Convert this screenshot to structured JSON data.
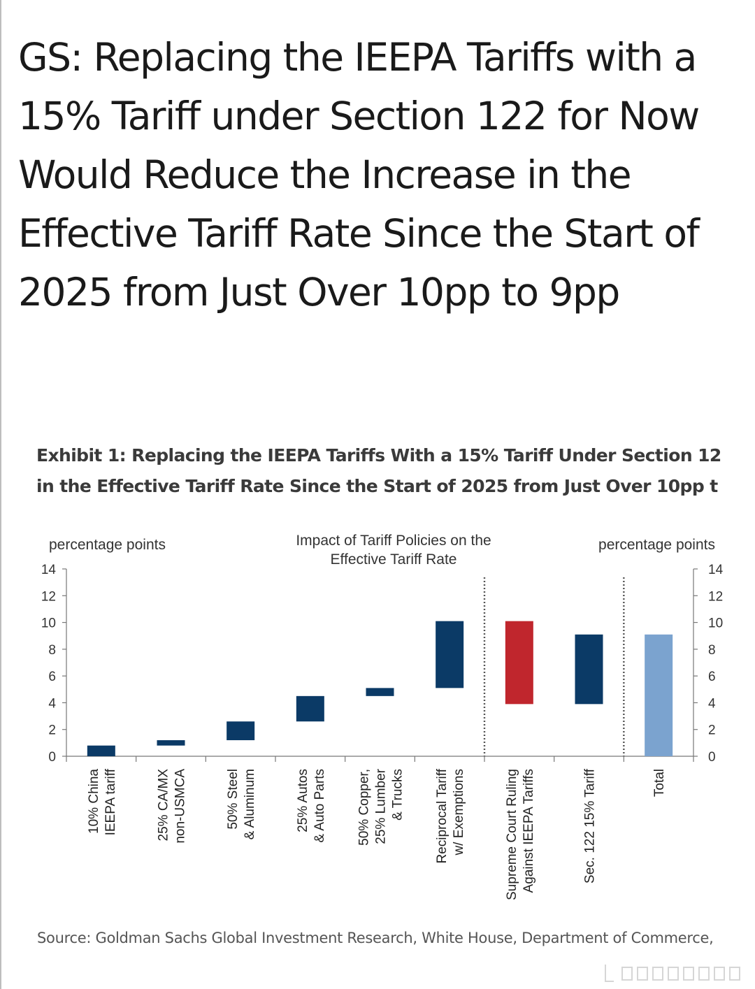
{
  "headline": "GS: Replacing the IEEPA Tariffs with a 15% Tariff under Section 122 for Now Would Reduce the Increase in the Effective Tariff Rate Since the Start of 2025 from Just Over 10pp to 9pp",
  "exhibit": {
    "line1": "Exhibit 1: Replacing the IEEPA Tariffs With a 15% Tariff Under Section 12",
    "line2": "in the Effective Tariff Rate Since the Start of 2025 from Just Over 10pp t"
  },
  "source": "Source: Goldman Sachs Global Investment Research, White House, Department of Commerce,",
  "chart_data": {
    "type": "bar",
    "subtype": "waterfall",
    "title_lines": [
      "Impact of Tariff Policies on the",
      "Effective  Tariff  Rate"
    ],
    "ylabel_left": "percentage  points",
    "ylabel_right": "percentage  points",
    "ylim": [
      0,
      14
    ],
    "yticks": [
      "0",
      "2",
      "4",
      "6",
      "8",
      "10",
      "12",
      "14"
    ],
    "grid": false,
    "bars": [
      {
        "label_lines": [
          "10% China",
          "IEEPA tariff"
        ],
        "start": 0.0,
        "end": 0.8,
        "color": "#0b3a66"
      },
      {
        "label_lines": [
          "25% CA/MX",
          "non-USMCA"
        ],
        "start": 0.8,
        "end": 1.2,
        "color": "#0b3a66"
      },
      {
        "label_lines": [
          "50% Steel",
          "& Aluminum"
        ],
        "start": 1.2,
        "end": 2.6,
        "color": "#0b3a66"
      },
      {
        "label_lines": [
          "25% Autos",
          "& Auto Parts"
        ],
        "start": 2.6,
        "end": 4.5,
        "color": "#0b3a66"
      },
      {
        "label_lines": [
          "50% Copper,",
          "25% Lumber",
          "& Trucks"
        ],
        "start": 4.5,
        "end": 5.1,
        "color": "#0b3a66"
      },
      {
        "label_lines": [
          "Reciprocal Tariff",
          "w/ Exemptions"
        ],
        "start": 5.1,
        "end": 10.1,
        "color": "#0b3a66"
      },
      {
        "label_lines": [
          "Supreme Court Ruling",
          "Against IEEPA Tariffs"
        ],
        "start": 10.1,
        "end": 3.9,
        "color": "#c0262d"
      },
      {
        "label_lines": [
          "Sec. 122 15% Tariff"
        ],
        "start": 3.9,
        "end": 9.1,
        "color": "#0b3a66"
      },
      {
        "label_lines": [
          "Total"
        ],
        "start": 0.0,
        "end": 9.1,
        "color": "#7ba3cf"
      }
    ],
    "dividers_after_bar_index": [
      5,
      7
    ]
  }
}
